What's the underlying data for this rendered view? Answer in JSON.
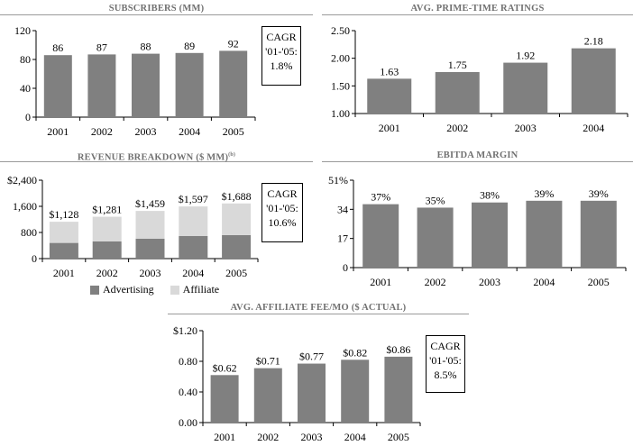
{
  "colors": {
    "bar": "#808080",
    "bar_light": "#d9d9d9",
    "axis": "#000000",
    "title": "#707070"
  },
  "chart_data": [
    {
      "id": "subs",
      "type": "bar",
      "title": "SUBSCRIBERS (MM)",
      "categories": [
        "2001",
        "2002",
        "2003",
        "2004",
        "2005"
      ],
      "values": [
        86,
        87,
        88,
        89,
        92
      ],
      "labels": [
        "86",
        "87",
        "88",
        "89",
        "92"
      ],
      "yticks": [
        "0",
        "40",
        "80",
        "120"
      ],
      "ylim": [
        0,
        120
      ],
      "cagr": [
        "CAGR",
        "'01-'05:",
        "1.8%"
      ]
    },
    {
      "id": "ratings",
      "type": "bar",
      "title": "AVG. PRIME-TIME RATINGS",
      "categories": [
        "2001",
        "2002",
        "2003",
        "2004"
      ],
      "values": [
        1.63,
        1.75,
        1.92,
        2.18
      ],
      "labels": [
        "1.63",
        "1.75",
        "1.92",
        "2.18"
      ],
      "yticks": [
        "1.00",
        "1.50",
        "2.00",
        "2.50"
      ],
      "ylim": [
        1.0,
        2.5
      ]
    },
    {
      "id": "revenue",
      "type": "bar",
      "stacked": true,
      "title": "REVENUE BREAKDOWN ($ MM)",
      "title_sup": "(b)",
      "categories": [
        "2001",
        "2002",
        "2003",
        "2004",
        "2005"
      ],
      "series": [
        {
          "name": "Advertising",
          "values": [
            480,
            525,
            610,
            690,
            720
          ]
        },
        {
          "name": "Affiliate",
          "values": [
            648,
            756,
            849,
            907,
            968
          ]
        }
      ],
      "totals": [
        1128,
        1281,
        1459,
        1597,
        1688
      ],
      "labels": [
        "$1,128",
        "$1,281",
        "$1,459",
        "$1,597",
        "$1,688"
      ],
      "yticks": [
        "0",
        "800",
        "1,600",
        "$2,400"
      ],
      "ylim": [
        0,
        2400
      ],
      "legend": [
        "Advertising",
        "Affiliate"
      ],
      "cagr": [
        "CAGR",
        "'01-'05:",
        "10.6%"
      ]
    },
    {
      "id": "ebitda",
      "type": "bar",
      "title": "EBITDA MARGIN",
      "categories": [
        "2001",
        "2002",
        "2003",
        "2004",
        "2005"
      ],
      "values": [
        37,
        35,
        38,
        39,
        39
      ],
      "labels": [
        "37%",
        "35%",
        "38%",
        "39%",
        "39%"
      ],
      "yticks": [
        "0",
        "17",
        "34",
        "51%"
      ],
      "ylim": [
        0,
        51
      ]
    },
    {
      "id": "fee",
      "type": "bar",
      "title": "AVG. AFFILIATE FEE/MO ($ ACTUAL)",
      "categories": [
        "2001",
        "2002",
        "2003",
        "2004",
        "2005"
      ],
      "values": [
        0.62,
        0.71,
        0.77,
        0.82,
        0.86
      ],
      "labels": [
        "$0.62",
        "$0.71",
        "$0.77",
        "$0.82",
        "$0.86"
      ],
      "yticks": [
        "0.00",
        "0.40",
        "0.80",
        "$1.20"
      ],
      "ylim": [
        0,
        1.2
      ],
      "cagr": [
        "CAGR",
        "'01-'05:",
        "8.5%"
      ]
    }
  ]
}
